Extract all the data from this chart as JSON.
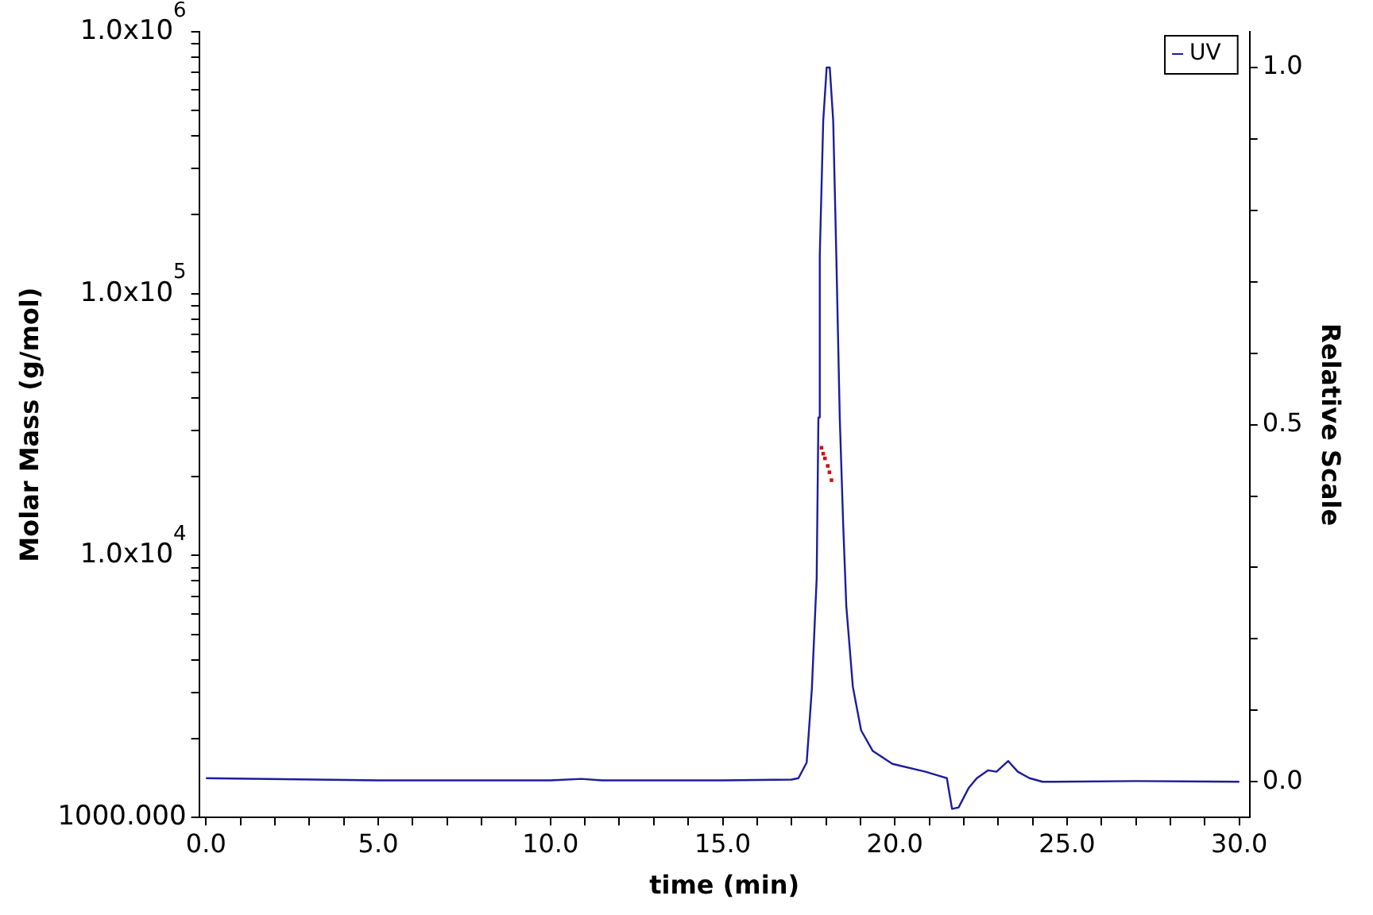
{
  "chart_data": {
    "type": "line",
    "xlabel": "time (min)",
    "ylabel": "Molar Mass (g/mol)",
    "y2label": "Relative Scale",
    "log": "y",
    "legend": "top right",
    "xlim": [
      -0.2,
      30.3
    ],
    "xticks": [
      {
        "value": 0,
        "label": "0.0"
      },
      {
        "value": 1,
        "label": null
      },
      {
        "value": 2,
        "label": null
      },
      {
        "value": 3,
        "label": null
      },
      {
        "value": 4,
        "label": null
      },
      {
        "value": 5,
        "label": "5.0"
      },
      {
        "value": 6,
        "label": null
      },
      {
        "value": 7,
        "label": null
      },
      {
        "value": 8,
        "label": null
      },
      {
        "value": 9,
        "label": null
      },
      {
        "value": 10,
        "label": "10.0"
      },
      {
        "value": 11,
        "label": null
      },
      {
        "value": 12,
        "label": null
      },
      {
        "value": 13,
        "label": null
      },
      {
        "value": 14,
        "label": null
      },
      {
        "value": 15,
        "label": "15.0"
      },
      {
        "value": 16,
        "label": null
      },
      {
        "value": 17,
        "label": null
      },
      {
        "value": 18,
        "label": null
      },
      {
        "value": 19,
        "label": null
      },
      {
        "value": 20,
        "label": "20.0"
      },
      {
        "value": 21,
        "label": null
      },
      {
        "value": 22,
        "label": null
      },
      {
        "value": 23,
        "label": null
      },
      {
        "value": 24,
        "label": null
      },
      {
        "value": 25,
        "label": "25.0"
      },
      {
        "value": 26,
        "label": null
      },
      {
        "value": 27,
        "label": null
      },
      {
        "value": 28,
        "label": null
      },
      {
        "value": 29,
        "label": null
      },
      {
        "value": 30,
        "label": "30.0"
      }
    ],
    "ylim": [
      1000,
      1000000
    ],
    "yticks": [
      {
        "value": 1000,
        "label": "1000.000"
      },
      {
        "value": 2000,
        "label": null
      },
      {
        "value": 3000,
        "label": null
      },
      {
        "value": 4000,
        "label": null
      },
      {
        "value": 5000,
        "label": null
      },
      {
        "value": 6000,
        "label": null
      },
      {
        "value": 7000,
        "label": null
      },
      {
        "value": 8000,
        "label": null
      },
      {
        "value": 9000,
        "label": null
      },
      {
        "value": 10000,
        "label": "1.0x10$^{4}$"
      },
      {
        "value": 20000,
        "label": null
      },
      {
        "value": 30000,
        "label": null
      },
      {
        "value": 40000,
        "label": null
      },
      {
        "value": 50000,
        "label": null
      },
      {
        "value": 60000,
        "label": null
      },
      {
        "value": 70000,
        "label": null
      },
      {
        "value": 80000,
        "label": null
      },
      {
        "value": 90000,
        "label": null
      },
      {
        "value": 100000,
        "label": "1.0x10$^{5}$"
      },
      {
        "value": 200000,
        "label": null
      },
      {
        "value": 300000,
        "label": null
      },
      {
        "value": 400000,
        "label": null
      },
      {
        "value": 500000,
        "label": null
      },
      {
        "value": 600000,
        "label": null
      },
      {
        "value": 700000,
        "label": null
      },
      {
        "value": 800000,
        "label": null
      },
      {
        "value": 900000,
        "label": null
      },
      {
        "value": 1000000,
        "label": "1.0x10$^{6}$"
      }
    ],
    "y2lim": [
      -0.05,
      1.05
    ],
    "y2ticks": [
      {
        "value": 0,
        "label": "0.0"
      },
      {
        "value": 0.1,
        "label": null
      },
      {
        "value": 0.2,
        "label": null
      },
      {
        "value": 0.3,
        "label": null
      },
      {
        "value": 0.4,
        "label": null
      },
      {
        "value": 0.5,
        "label": "0.5"
      },
      {
        "value": 0.6,
        "label": null
      },
      {
        "value": 0.7,
        "label": null
      },
      {
        "value": 0.8,
        "label": null
      },
      {
        "value": 0.9,
        "label": null
      },
      {
        "value": 1,
        "label": "1.0"
      }
    ],
    "series": [
      {
        "name": "UV",
        "axis": "y2",
        "color": "#1c1c9c",
        "x": [
          0,
          5,
          10,
          10.9,
          11.5,
          15,
          17,
          17.2,
          17.44,
          17.59,
          17.73,
          17.78,
          17.82,
          17.92,
          18.02,
          18.11,
          18.21,
          18.3,
          18.4,
          18.5,
          18.59,
          18.78,
          19.02,
          19.36,
          19.93,
          20.89,
          21.37,
          21.51,
          21.66,
          21.85,
          22.14,
          22.38,
          22.71,
          22.95,
          23.29,
          23.57,
          23.91,
          24.29,
          24.63,
          27,
          30
        ],
        "values": [
          0.005,
          0.002,
          0.002,
          0.004,
          0.002,
          0.002,
          0.003,
          0.005,
          0.027,
          0.13,
          0.285,
          0.51,
          0.737,
          0.925,
          1.0,
          1.0,
          0.925,
          0.737,
          0.51,
          0.36,
          0.246,
          0.133,
          0.072,
          0.043,
          0.025,
          0.014,
          0.007,
          0.005,
          -0.038,
          -0.036,
          -0.009,
          0.005,
          0.016,
          0.014,
          0.029,
          0.014,
          0.005,
          0,
          0,
          0.001,
          0
        ]
      },
      {
        "type": "scatter",
        "marker": "square",
        "color": "#cc1111",
        "x": [
          17.87,
          17.92,
          17.97,
          18.05,
          18.1,
          18.16
        ],
        "values": [
          25800,
          24500,
          23500,
          22000,
          20800,
          19400
        ]
      }
    ]
  }
}
